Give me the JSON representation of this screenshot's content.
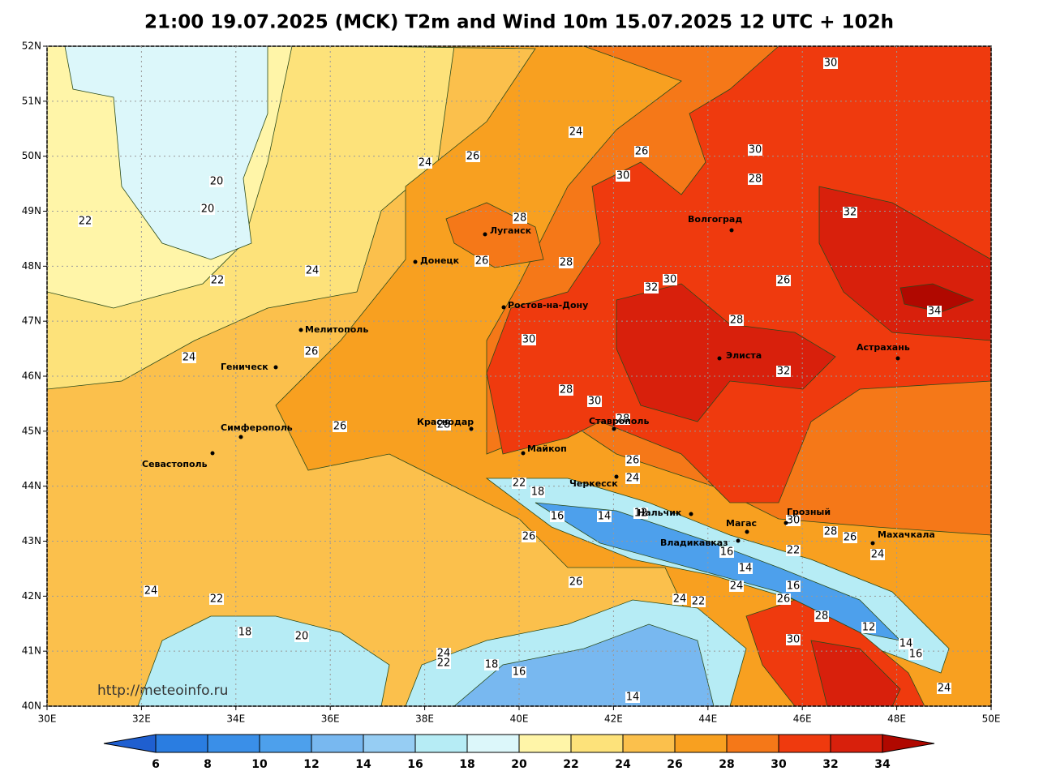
{
  "header": {
    "title": "21:00 19.07.2025 (MCK) T2m and Wind 10m 15.07.2025 12 UTC + 102h"
  },
  "map": {
    "xlim": [
      30,
      50
    ],
    "ylim": [
      40,
      52
    ],
    "grid": true,
    "xticks": [
      {
        "value": 30,
        "label": "30E"
      },
      {
        "value": 32,
        "label": "32E"
      },
      {
        "value": 34,
        "label": "34E"
      },
      {
        "value": 36,
        "label": "36E"
      },
      {
        "value": 38,
        "label": "38E"
      },
      {
        "value": 40,
        "label": "40E"
      },
      {
        "value": 42,
        "label": "42E"
      },
      {
        "value": 44,
        "label": "44E"
      },
      {
        "value": 46,
        "label": "46E"
      },
      {
        "value": 48,
        "label": "48E"
      },
      {
        "value": 50,
        "label": "50E"
      }
    ],
    "yticks": [
      {
        "value": 52,
        "label": "52N"
      },
      {
        "value": 51,
        "label": "51N"
      },
      {
        "value": 50,
        "label": "50N"
      },
      {
        "value": 49,
        "label": "49N"
      },
      {
        "value": 48,
        "label": "48N"
      },
      {
        "value": 47,
        "label": "47N"
      },
      {
        "value": 46,
        "label": "46N"
      },
      {
        "value": 45,
        "label": "45N"
      },
      {
        "value": 44,
        "label": "44N"
      },
      {
        "value": 43,
        "label": "43N"
      },
      {
        "value": 42,
        "label": "42N"
      },
      {
        "value": 41,
        "label": "41N"
      },
      {
        "value": 40,
        "label": "40N"
      }
    ],
    "cities": [
      "Луганск",
      "Донецк",
      "Ростов-на-Дону",
      "Мелитополь",
      "Геническ",
      "Симферополь",
      "Севастополь",
      "Краснодар",
      "Майкоп",
      "Ставрополь",
      "Черкесск",
      "Нальчик",
      "Магас",
      "Грозный",
      "Владикавказ",
      "Махачкала",
      "Волгоград",
      "Элиста",
      "Астрахань"
    ],
    "contour_labels": [
      30,
      24,
      26,
      24,
      26,
      30,
      30,
      28,
      20,
      20,
      22,
      32,
      28,
      28,
      26,
      24,
      22,
      30,
      32,
      26,
      34,
      28,
      30,
      26,
      24,
      32,
      28,
      30,
      28,
      28,
      26,
      26,
      24,
      22,
      18,
      16,
      14,
      12,
      30,
      26,
      28,
      26,
      16,
      22,
      24,
      14,
      24,
      26,
      16,
      26,
      24,
      22,
      28,
      12,
      24,
      22,
      18,
      20,
      30,
      14,
      16,
      24,
      22,
      18,
      16,
      24,
      14
    ],
    "watermark": "http://meteoinfo.ru"
  },
  "colorbar": {
    "ticks": [
      6,
      8,
      10,
      12,
      14,
      16,
      18,
      20,
      22,
      24,
      26,
      28,
      30,
      32,
      34
    ],
    "colors": [
      "#1f5fd0",
      "#2a7de1",
      "#3a8fe8",
      "#4da0ec",
      "#78b8f0",
      "#96cdf3",
      "#b6ecf5",
      "#dcf7fa",
      "#fff5a8",
      "#fde27a",
      "#fbc04c",
      "#f8a020",
      "#f57818",
      "#ef3a0e",
      "#d8200c",
      "#b00800"
    ]
  }
}
